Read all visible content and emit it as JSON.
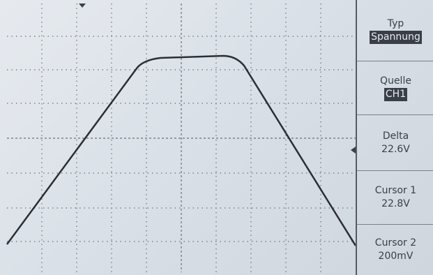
{
  "menu": [
    {
      "label": "Typ",
      "value": "Spannung"
    },
    {
      "label": "Quelle",
      "value": "CH1"
    },
    {
      "label": "Delta",
      "value": "22.6V"
    },
    {
      "label": "Cursor 1",
      "value": "22.8V"
    },
    {
      "label": "Cursor 2",
      "value": "200mV"
    }
  ]
}
